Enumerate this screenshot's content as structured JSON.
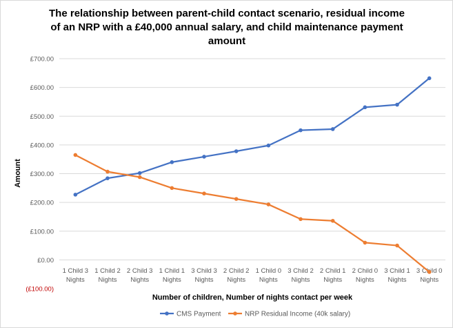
{
  "chart_data": {
    "type": "line",
    "title": "The relationship between parent-child contact scenario, residual income of an NRP with a £40,000 annual salary, and child maintenance payment amount",
    "title_lines": [
      "The relationship between parent-child contact scenario, residual income",
      "of an NRP with a £40,000 annual salary, and child maintenance payment",
      "amount"
    ],
    "xlabel": "Number of children, Number of nights contact per week",
    "ylabel": "Amount",
    "ylim": [
      -100,
      700
    ],
    "y_ticks": [
      {
        "value": 700,
        "label": "£700.00"
      },
      {
        "value": 600,
        "label": "£600.00"
      },
      {
        "value": 500,
        "label": "£500.00"
      },
      {
        "value": 400,
        "label": "£400.00"
      },
      {
        "value": 300,
        "label": "£300.00"
      },
      {
        "value": 200,
        "label": "£200.00"
      },
      {
        "value": 100,
        "label": "£100.00"
      },
      {
        "value": 0,
        "label": "£0.00"
      },
      {
        "value": -100,
        "label": "(£100.00)"
      }
    ],
    "categories": [
      [
        "1 Child 3",
        "Nights"
      ],
      [
        "1 Child 2",
        "Nights"
      ],
      [
        "2 Child 3",
        "Nights"
      ],
      [
        "1 Child 1",
        "Nights"
      ],
      [
        "3 Child 3",
        "Nights"
      ],
      [
        "2 Child 2",
        "Nights"
      ],
      [
        "1 Child 0",
        "Nights"
      ],
      [
        "3 Child 2",
        "Nights"
      ],
      [
        "2 Child 1",
        "Nights"
      ],
      [
        "2 Child 0",
        "Nights"
      ],
      [
        "3 Child 1",
        "Nights"
      ],
      [
        "3 Child 0",
        "Nights"
      ]
    ],
    "grid": true,
    "legend_position": "bottom",
    "series": [
      {
        "name": "CMS Payment",
        "color": "#4472c4",
        "values": [
          227,
          284,
          302,
          340,
          359,
          378,
          398,
          451,
          455,
          531,
          540,
          632
        ]
      },
      {
        "name": "NRP Residual Income (40k salary)",
        "color": "#ed7d31",
        "values": [
          365,
          307,
          288,
          250,
          231,
          212,
          193,
          142,
          136,
          60,
          50,
          -42
        ]
      }
    ]
  }
}
